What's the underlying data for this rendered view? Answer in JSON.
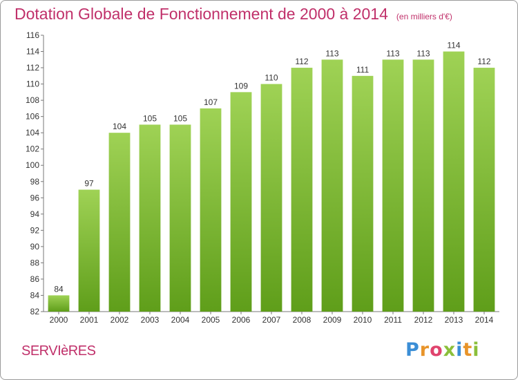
{
  "chart_data": {
    "type": "bar",
    "title": "Dotation Globale de Fonctionnement de 2000 à 2014",
    "subtitle": "(en milliers d'€)",
    "xlabel": "",
    "ylabel": "",
    "categories": [
      "2000",
      "2001",
      "2002",
      "2003",
      "2004",
      "2005",
      "2006",
      "2007",
      "2008",
      "2009",
      "2010",
      "2011",
      "2012",
      "2013",
      "2014"
    ],
    "values": [
      84,
      97,
      104,
      105,
      105,
      107,
      109,
      110,
      112,
      113,
      111,
      113,
      113,
      114,
      112
    ],
    "ylim": [
      82,
      116
    ],
    "yticks": [
      82,
      84,
      86,
      88,
      90,
      92,
      94,
      96,
      98,
      100,
      102,
      104,
      106,
      108,
      110,
      112,
      114,
      116
    ],
    "grid": false,
    "data_labels": true,
    "bar_color_top": "#9fd255",
    "bar_color_bottom": "#5f9e1a",
    "axis_color": "#777777",
    "text_color": "#333333"
  },
  "commune": "SERVIèRES",
  "logo": {
    "letters": [
      "P",
      "r",
      "o",
      "x",
      "i",
      "t",
      "i"
    ]
  },
  "colors": {
    "title": "#c0306a",
    "border": "#9a9a9a"
  }
}
